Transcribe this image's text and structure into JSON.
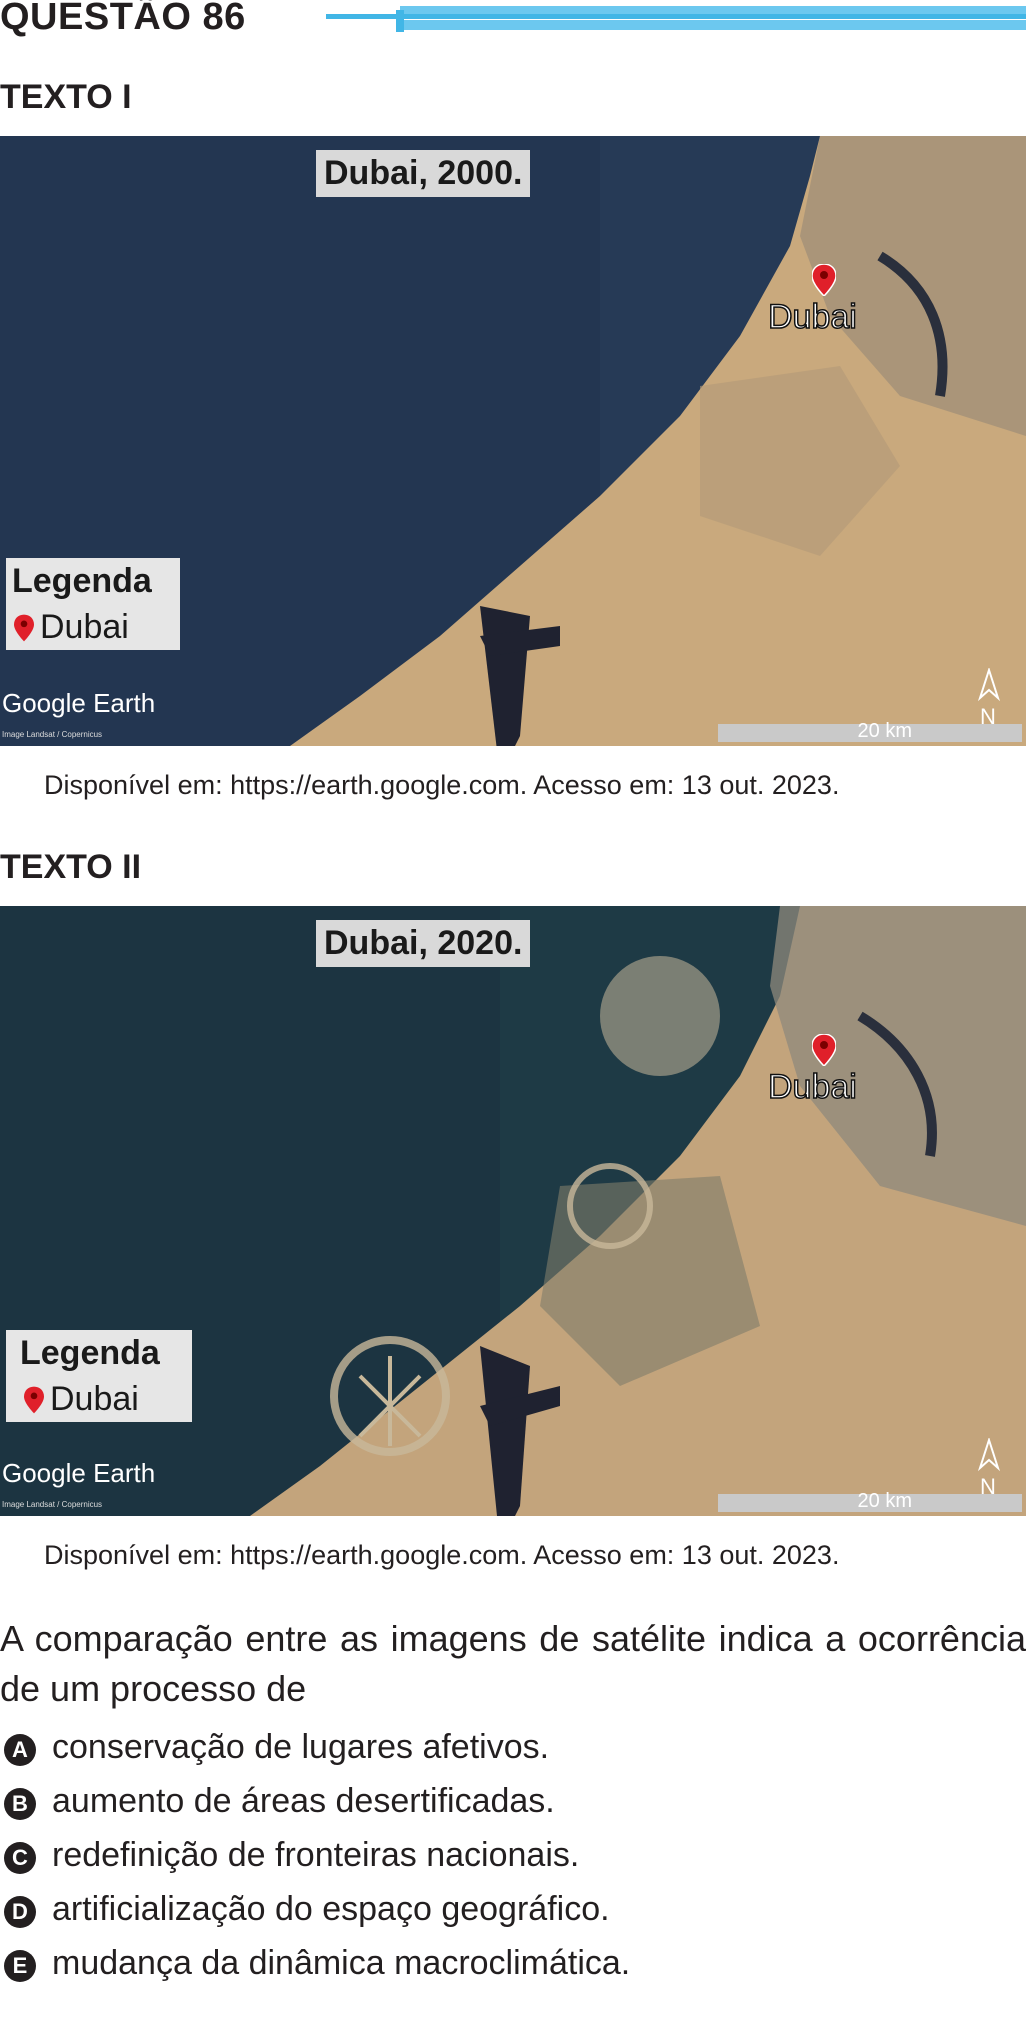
{
  "question": {
    "title": "QUESTÃO 86",
    "accent_color": "#41b6e6"
  },
  "texto1": {
    "label": "TEXTO I",
    "map_title": "Dubai, 2000.",
    "city_label": "Dubai",
    "legend_title": "Legenda",
    "legend_item": "Dubai",
    "brand": "Google Earth",
    "credit": "Image Landsat / Copernicus",
    "scale": "20 km",
    "north": "N",
    "caption": "Disponível em: https://earth.google.com. Acesso em: 13 out. 2023."
  },
  "texto2": {
    "label": "TEXTO II",
    "map_title": "Dubai, 2020.",
    "city_label": "Dubai",
    "legend_title": "Legenda",
    "legend_item": "Dubai",
    "brand": "Google Earth",
    "credit": "Image Landsat / Copernicus",
    "scale": "20 km",
    "north": "N",
    "caption": "Disponível em: https://earth.google.com. Acesso em: 13 out. 2023."
  },
  "stem": "A comparação entre as imagens de satélite indica a ocorrência de um processo de",
  "options": [
    {
      "letter": "A",
      "text": "conservação de lugares afetivos."
    },
    {
      "letter": "B",
      "text": "aumento de áreas desertificadas."
    },
    {
      "letter": "C",
      "text": "redefinição de fronteiras nacionais."
    },
    {
      "letter": "D",
      "text": "artificialização do espaço geográfico."
    },
    {
      "letter": "E",
      "text": "mudança da dinâmica macroclimática."
    }
  ],
  "icons": {
    "pin": "map-pin-icon",
    "north": "north-arrow-icon"
  },
  "colors": {
    "sea_2000": "#263a56",
    "sea_2020": "#1e3a45",
    "land": "#c8a77a",
    "pin": "#e0202a"
  }
}
